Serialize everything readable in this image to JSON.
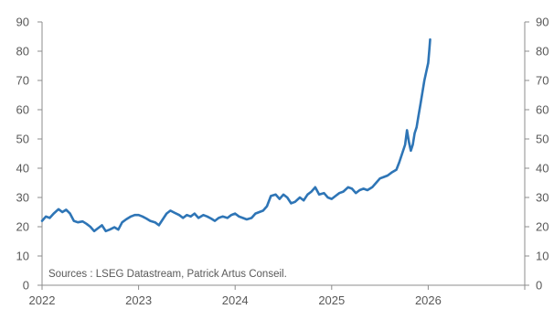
{
  "chart_data": {
    "type": "line",
    "title": "",
    "xlabel": "",
    "ylabel": "",
    "source": "Sources : LSEG Datastream, Patrick Artus Conseil.",
    "ylim": [
      0,
      90
    ],
    "yticks_left": [
      "0",
      "10",
      "20",
      "30",
      "40",
      "50",
      "60",
      "70",
      "80",
      "90"
    ],
    "yticks_right": [
      "0",
      "10",
      "20",
      "30",
      "40",
      "50",
      "60",
      "70",
      "80",
      "90"
    ],
    "xlim": [
      2022,
      2027
    ],
    "xticks": [
      "2022",
      "2023",
      "2024",
      "2025",
      "2026"
    ],
    "legend": "none",
    "grid": false,
    "colors": {
      "line": "#2e75b6",
      "axis": "#8c8c8c",
      "text": "#595959"
    },
    "series": [
      {
        "points": [
          [
            2022.0,
            22.0
          ],
          [
            2022.04,
            23.5
          ],
          [
            2022.08,
            23.0
          ],
          [
            2022.12,
            24.5
          ],
          [
            2022.17,
            26.0
          ],
          [
            2022.21,
            25.0
          ],
          [
            2022.25,
            25.8
          ],
          [
            2022.29,
            24.5
          ],
          [
            2022.33,
            22.0
          ],
          [
            2022.37,
            21.5
          ],
          [
            2022.42,
            21.8
          ],
          [
            2022.46,
            21.0
          ],
          [
            2022.5,
            20.0
          ],
          [
            2022.54,
            18.5
          ],
          [
            2022.58,
            19.5
          ],
          [
            2022.62,
            20.5
          ],
          [
            2022.66,
            18.5
          ],
          [
            2022.7,
            19.0
          ],
          [
            2022.75,
            19.8
          ],
          [
            2022.79,
            19.0
          ],
          [
            2022.83,
            21.5
          ],
          [
            2022.87,
            22.5
          ],
          [
            2022.92,
            23.5
          ],
          [
            2022.96,
            24.0
          ],
          [
            2023.0,
            24.0
          ],
          [
            2023.04,
            23.5
          ],
          [
            2023.08,
            22.8
          ],
          [
            2023.12,
            22.0
          ],
          [
            2023.17,
            21.5
          ],
          [
            2023.21,
            20.5
          ],
          [
            2023.25,
            22.5
          ],
          [
            2023.29,
            24.5
          ],
          [
            2023.33,
            25.5
          ],
          [
            2023.37,
            24.8
          ],
          [
            2023.42,
            24.0
          ],
          [
            2023.46,
            23.0
          ],
          [
            2023.5,
            24.0
          ],
          [
            2023.54,
            23.5
          ],
          [
            2023.58,
            24.5
          ],
          [
            2023.62,
            23.0
          ],
          [
            2023.67,
            24.0
          ],
          [
            2023.71,
            23.5
          ],
          [
            2023.75,
            22.8
          ],
          [
            2023.79,
            22.0
          ],
          [
            2023.83,
            23.0
          ],
          [
            2023.87,
            23.5
          ],
          [
            2023.92,
            23.0
          ],
          [
            2023.96,
            24.0
          ],
          [
            2024.0,
            24.5
          ],
          [
            2024.04,
            23.5
          ],
          [
            2024.08,
            23.0
          ],
          [
            2024.12,
            22.5
          ],
          [
            2024.17,
            23.0
          ],
          [
            2024.21,
            24.5
          ],
          [
            2024.25,
            25.0
          ],
          [
            2024.29,
            25.5
          ],
          [
            2024.33,
            27.0
          ],
          [
            2024.37,
            30.5
          ],
          [
            2024.42,
            31.0
          ],
          [
            2024.46,
            29.5
          ],
          [
            2024.5,
            31.0
          ],
          [
            2024.54,
            30.0
          ],
          [
            2024.58,
            28.0
          ],
          [
            2024.62,
            28.5
          ],
          [
            2024.67,
            30.0
          ],
          [
            2024.71,
            29.0
          ],
          [
            2024.75,
            31.0
          ],
          [
            2024.79,
            32.0
          ],
          [
            2024.83,
            33.5
          ],
          [
            2024.87,
            31.0
          ],
          [
            2024.92,
            31.5
          ],
          [
            2024.96,
            30.0
          ],
          [
            2025.0,
            29.5
          ],
          [
            2025.04,
            30.5
          ],
          [
            2025.08,
            31.5
          ],
          [
            2025.12,
            32.0
          ],
          [
            2025.17,
            33.5
          ],
          [
            2025.21,
            33.0
          ],
          [
            2025.25,
            31.5
          ],
          [
            2025.29,
            32.5
          ],
          [
            2025.33,
            33.0
          ],
          [
            2025.37,
            32.5
          ],
          [
            2025.42,
            33.5
          ],
          [
            2025.46,
            35.0
          ],
          [
            2025.5,
            36.5
          ],
          [
            2025.54,
            37.0
          ],
          [
            2025.58,
            37.5
          ],
          [
            2025.62,
            38.5
          ],
          [
            2025.67,
            39.5
          ],
          [
            2025.7,
            42.0
          ],
          [
            2025.73,
            45.0
          ],
          [
            2025.76,
            48.0
          ],
          [
            2025.78,
            53.0
          ],
          [
            2025.8,
            49.0
          ],
          [
            2025.82,
            46.0
          ],
          [
            2025.84,
            48.0
          ],
          [
            2025.86,
            52.0
          ],
          [
            2025.88,
            54.0
          ],
          [
            2025.9,
            58.0
          ],
          [
            2025.92,
            62.0
          ],
          [
            2025.94,
            66.0
          ],
          [
            2025.96,
            70.0
          ],
          [
            2025.98,
            73.0
          ],
          [
            2026.0,
            76.0
          ],
          [
            2026.01,
            80.0
          ],
          [
            2026.02,
            84.0
          ]
        ]
      }
    ]
  }
}
